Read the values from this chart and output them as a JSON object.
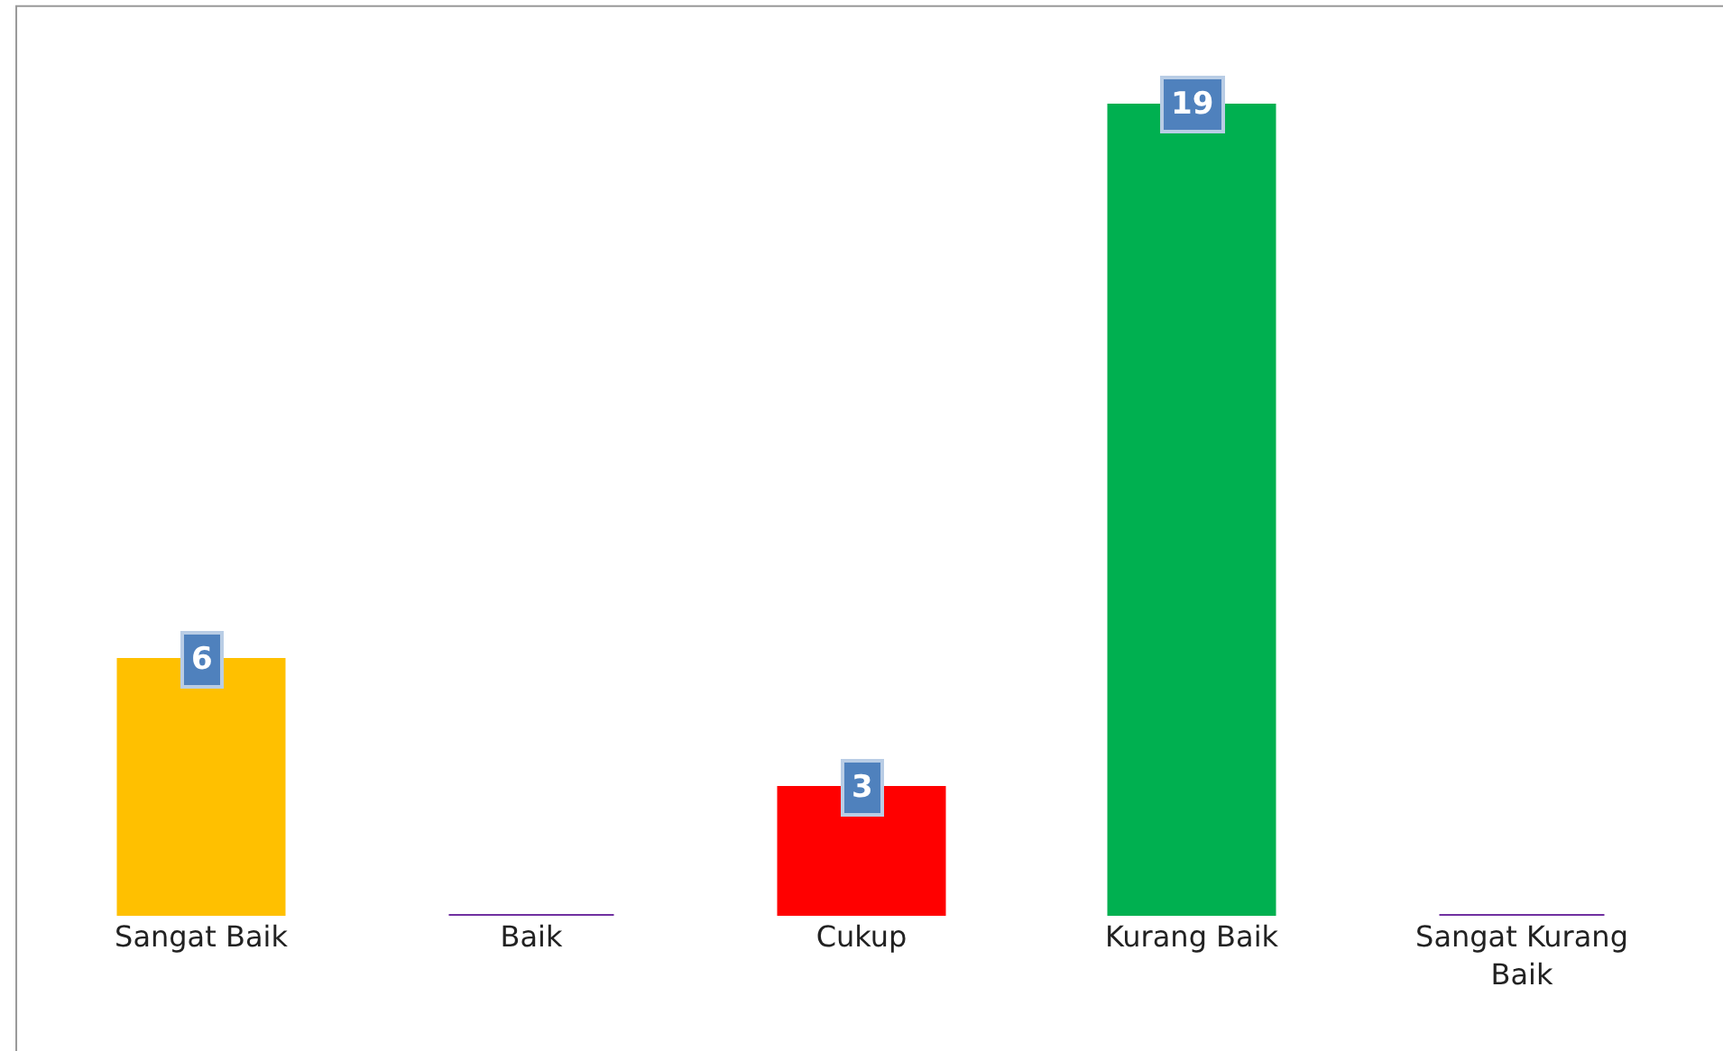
{
  "chart_data": {
    "type": "bar",
    "categories": [
      "Sangat Baik",
      "Baik",
      "Cukup",
      "Kurang Baik",
      "Sangat Kurang Baik"
    ],
    "values": [
      6,
      0,
      3,
      19,
      0
    ],
    "colors": [
      "#ffc000",
      "#7030a0",
      "#ff0000",
      "#00b050",
      "#7030a0"
    ],
    "value_labels": [
      "6",
      null,
      "3",
      "19",
      null
    ],
    "legend": false
  }
}
